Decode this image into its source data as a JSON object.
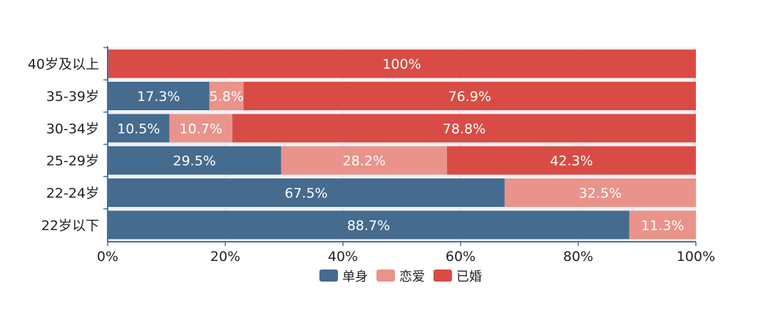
{
  "chart_data": {
    "type": "bar",
    "orientation": "horizontal",
    "stacked": true,
    "categories": [
      "40岁及以上",
      "35-39岁",
      "30-34岁",
      "25-29岁",
      "22-24岁",
      "22岁以下"
    ],
    "series": [
      {
        "name": "单身",
        "color": "#456b8f",
        "values": [
          0,
          17.3,
          10.5,
          29.5,
          67.5,
          88.7
        ]
      },
      {
        "name": "恋爱",
        "color": "#e9938a",
        "values": [
          0,
          5.8,
          10.7,
          28.2,
          32.5,
          11.3
        ]
      },
      {
        "name": "已婚",
        "color": "#d84c45",
        "values": [
          100,
          76.9,
          78.8,
          42.3,
          0,
          0
        ]
      }
    ],
    "data_labels": [
      [
        "",
        "",
        "100%"
      ],
      [
        "17.3%",
        "5.8%",
        "76.9%"
      ],
      [
        "10.5%",
        "10.7%",
        "78.8%"
      ],
      [
        "29.5%",
        "28.2%",
        "42.3%"
      ],
      [
        "67.5%",
        "32.5%",
        ""
      ],
      [
        "88.7%",
        "11.3%",
        ""
      ]
    ],
    "x_ticks": [
      "0%",
      "20%",
      "40%",
      "60%",
      "80%",
      "100%"
    ],
    "xlim": [
      0,
      100
    ],
    "grid": true,
    "legend_position": "bottom"
  }
}
